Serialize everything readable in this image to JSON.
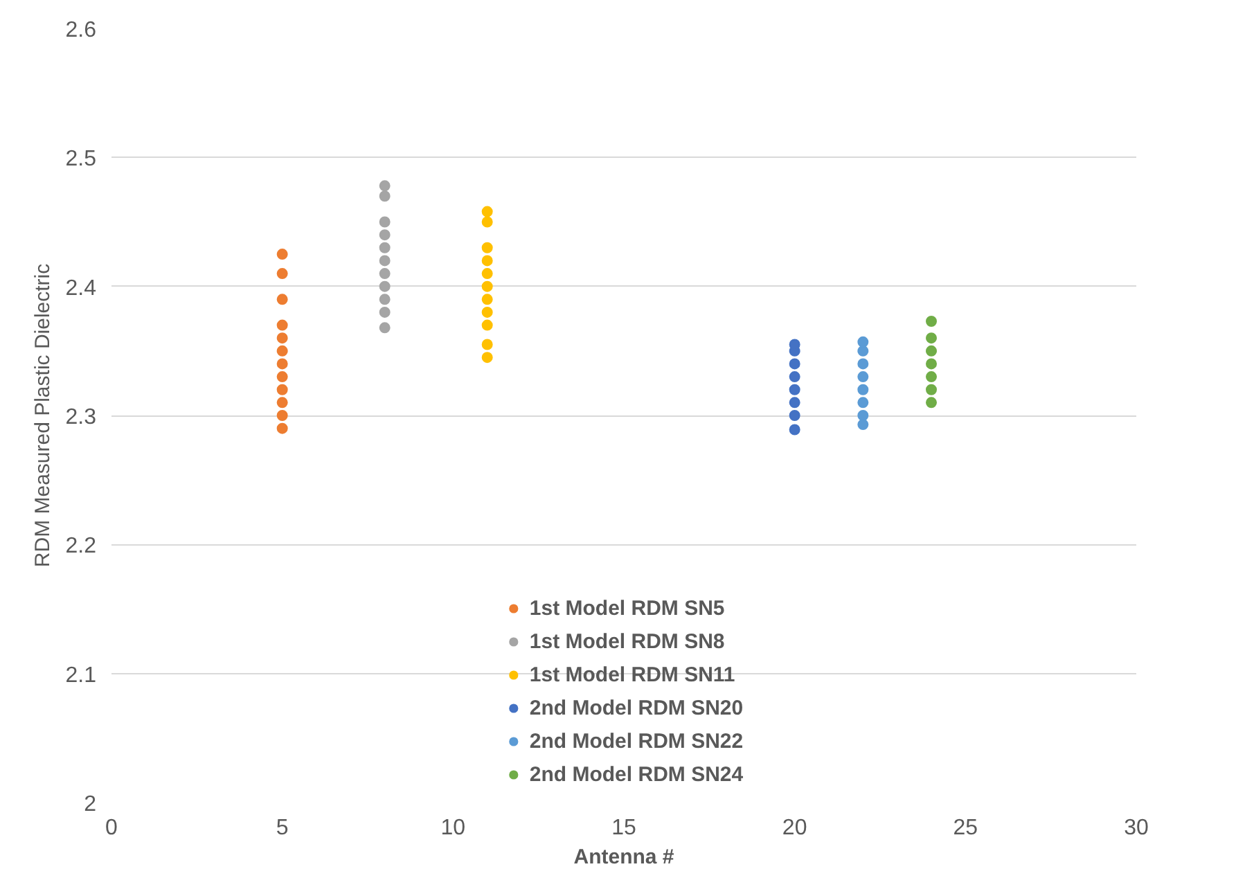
{
  "chart_data": {
    "type": "scatter",
    "xlabel": "Antenna #",
    "ylabel": "RDM Measured Plastic Dielectric",
    "xlim": [
      0,
      30
    ],
    "xticks": [
      0,
      5,
      10,
      15,
      20,
      25,
      30
    ],
    "ylim": [
      2,
      2.6
    ],
    "yticks": [
      2,
      2.1,
      2.2,
      2.3,
      2.4,
      2.5,
      2.6
    ],
    "grid": "y",
    "legend": "bottom",
    "marker": "circle",
    "series": [
      {
        "name": "1st Model RDM SN5",
        "color": "#ed7d31",
        "x": [
          5,
          5,
          5,
          5,
          5,
          5,
          5,
          5,
          5,
          5,
          5,
          5
        ],
        "values": [
          2.29,
          2.3,
          2.31,
          2.32,
          2.33,
          2.34,
          2.35,
          2.36,
          2.37,
          2.39,
          2.41,
          2.425
        ]
      },
      {
        "name": "1st Model RDM SN8",
        "color": "#a5a5a5",
        "x": [
          8,
          8,
          8,
          8,
          8,
          8,
          8,
          8,
          8,
          8,
          8
        ],
        "values": [
          2.368,
          2.38,
          2.39,
          2.4,
          2.41,
          2.42,
          2.43,
          2.44,
          2.45,
          2.47,
          2.478
        ]
      },
      {
        "name": "1st Model RDM SN11",
        "color": "#ffc000",
        "x": [
          11,
          11,
          11,
          11,
          11,
          11,
          11,
          11,
          11,
          11,
          11
        ],
        "values": [
          2.345,
          2.355,
          2.37,
          2.38,
          2.39,
          2.4,
          2.41,
          2.42,
          2.43,
          2.45,
          2.458
        ]
      },
      {
        "name": "2nd Model RDM SN20",
        "color": "#4472c4",
        "x": [
          20,
          20,
          20,
          20,
          20,
          20,
          20,
          20
        ],
        "values": [
          2.289,
          2.3,
          2.31,
          2.32,
          2.33,
          2.34,
          2.35,
          2.355
        ]
      },
      {
        "name": "2nd Model RDM SN22",
        "color": "#5b9bd5",
        "x": [
          22,
          22,
          22,
          22,
          22,
          22,
          22,
          22
        ],
        "values": [
          2.293,
          2.3,
          2.31,
          2.32,
          2.33,
          2.34,
          2.35,
          2.357
        ]
      },
      {
        "name": "2nd Model RDM SN24",
        "color": "#70ad47",
        "x": [
          24,
          24,
          24,
          24,
          24,
          24,
          24
        ],
        "values": [
          2.31,
          2.32,
          2.33,
          2.34,
          2.35,
          2.36,
          2.373
        ]
      }
    ]
  }
}
